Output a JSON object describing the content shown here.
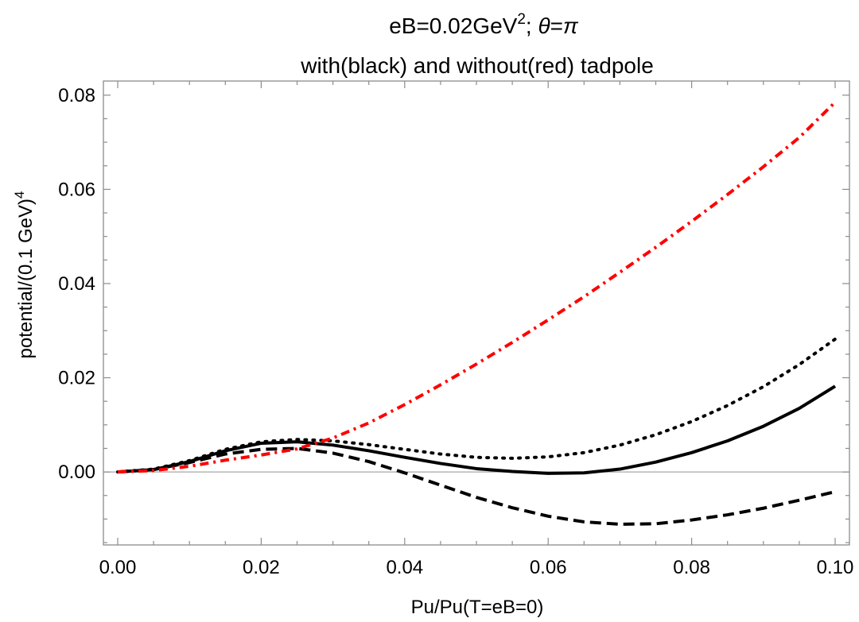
{
  "chart_data": {
    "type": "line",
    "title_parts": {
      "prefix": "eB=0.02GeV",
      "exp": "2",
      "middle": "; ",
      "theta": "θ",
      "eq": "=",
      "pi": "π"
    },
    "subtitle": "with(black) and without(red) tadpole",
    "xlabel": "Pu/Pu(T=eB=0)",
    "ylabel_base": "potential/(0.1 GeV)",
    "ylabel_exp": "4",
    "xlim": [
      0.0,
      0.1
    ],
    "ylim": [
      -0.0155,
      0.083
    ],
    "x_ticks": [
      {
        "value": 0.0,
        "label": "0.00"
      },
      {
        "value": 0.02,
        "label": "0.02"
      },
      {
        "value": 0.04,
        "label": "0.04"
      },
      {
        "value": 0.06,
        "label": "0.06"
      },
      {
        "value": 0.08,
        "label": "0.08"
      },
      {
        "value": 0.1,
        "label": "0.10"
      }
    ],
    "y_ticks": [
      {
        "value": 0.0,
        "label": "0.00"
      },
      {
        "value": 0.02,
        "label": "0.02"
      },
      {
        "value": 0.04,
        "label": "0.04"
      },
      {
        "value": 0.06,
        "label": "0.06"
      },
      {
        "value": 0.08,
        "label": "0.08"
      }
    ],
    "x_minor_step": 0.005,
    "y_minor_step": 0.005,
    "series": [
      {
        "style": "solid",
        "color": "#000000",
        "x": [
          0,
          0.005,
          0.01,
          0.015,
          0.02,
          0.025,
          0.03,
          0.035,
          0.04,
          0.045,
          0.05,
          0.055,
          0.06,
          0.065,
          0.07,
          0.075,
          0.08,
          0.085,
          0.09,
          0.095,
          0.1
        ],
        "y": [
          0,
          0.0005,
          0.0022,
          0.0045,
          0.0061,
          0.0064,
          0.0057,
          0.0045,
          0.0031,
          0.0018,
          0.0007,
          0.0001,
          -0.0003,
          -0.0002,
          0.0006,
          0.0021,
          0.0041,
          0.0066,
          0.0097,
          0.0135,
          0.0182
        ]
      },
      {
        "style": "dotted",
        "color": "#000000",
        "x": [
          0,
          0.005,
          0.01,
          0.015,
          0.02,
          0.025,
          0.03,
          0.035,
          0.04,
          0.045,
          0.05,
          0.055,
          0.06,
          0.065,
          0.07,
          0.075,
          0.08,
          0.085,
          0.09,
          0.095,
          0.1
        ],
        "y": [
          0,
          0.0006,
          0.0024,
          0.0048,
          0.0064,
          0.0069,
          0.0066,
          0.0058,
          0.0048,
          0.0038,
          0.0031,
          0.0029,
          0.0032,
          0.0041,
          0.0057,
          0.0079,
          0.0107,
          0.0141,
          0.0181,
          0.0228,
          0.0282
        ]
      },
      {
        "style": "dashed",
        "color": "#000000",
        "x": [
          0,
          0.005,
          0.01,
          0.015,
          0.02,
          0.025,
          0.03,
          0.035,
          0.04,
          0.045,
          0.05,
          0.055,
          0.06,
          0.065,
          0.07,
          0.075,
          0.08,
          0.085,
          0.09,
          0.095,
          0.1
        ],
        "y": [
          0,
          0.0005,
          0.002,
          0.0038,
          0.0048,
          0.005,
          0.004,
          0.0022,
          -0.0002,
          -0.0028,
          -0.0054,
          -0.0076,
          -0.0094,
          -0.0106,
          -0.0111,
          -0.011,
          -0.0102,
          -0.0091,
          -0.0077,
          -0.006,
          -0.0042
        ]
      },
      {
        "style": "dashdot",
        "color": "#ff0000",
        "x": [
          0,
          0.005,
          0.01,
          0.015,
          0.02,
          0.025,
          0.03,
          0.035,
          0.04,
          0.045,
          0.05,
          0.055,
          0.06,
          0.065,
          0.07,
          0.075,
          0.08,
          0.085,
          0.09,
          0.095,
          0.1
        ],
        "y": [
          0,
          0.0003,
          0.0012,
          0.0025,
          0.0036,
          0.0049,
          0.0072,
          0.0104,
          0.0143,
          0.0185,
          0.0229,
          0.0275,
          0.0323,
          0.0372,
          0.0424,
          0.0477,
          0.0532,
          0.0589,
          0.0648,
          0.071,
          0.0785
        ]
      }
    ]
  }
}
